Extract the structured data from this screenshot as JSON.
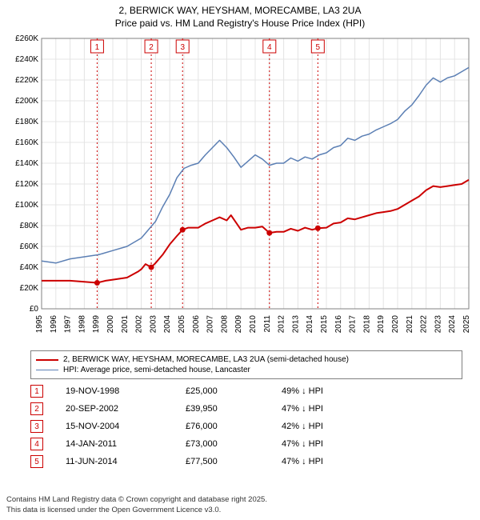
{
  "title_line1": "2, BERWICK WAY, HEYSHAM, MORECAMBE, LA3 2UA",
  "title_line2": "Price paid vs. HM Land Registry's House Price Index (HPI)",
  "chart": {
    "type": "line",
    "background_color": "#ffffff",
    "grid_color": "#e4e4e4",
    "axis_color": "#808080",
    "font_size_axis": 10,
    "y": {
      "min": 0,
      "max": 260000,
      "step": 20000,
      "labels": [
        "£0",
        "£20K",
        "£40K",
        "£60K",
        "£80K",
        "£100K",
        "£120K",
        "£140K",
        "£160K",
        "£180K",
        "£200K",
        "£220K",
        "£240K",
        "£260K"
      ]
    },
    "x": {
      "min": 1995,
      "max": 2025,
      "step": 1,
      "labels": [
        "1995",
        "1996",
        "1997",
        "1998",
        "1999",
        "2000",
        "2001",
        "2002",
        "2003",
        "2004",
        "2005",
        "2006",
        "2007",
        "2008",
        "2009",
        "2010",
        "2011",
        "2012",
        "2013",
        "2014",
        "2015",
        "2016",
        "2017",
        "2018",
        "2019",
        "2020",
        "2021",
        "2022",
        "2023",
        "2024",
        "2025"
      ]
    },
    "series": [
      {
        "name": "price_paid",
        "color": "#cc0000",
        "line_width": 2,
        "points": [
          [
            1995,
            27000
          ],
          [
            1996,
            27000
          ],
          [
            1997,
            27000
          ],
          [
            1998,
            26000
          ],
          [
            1998.9,
            25000
          ],
          [
            1999.5,
            27000
          ],
          [
            2000,
            28000
          ],
          [
            2001,
            30000
          ],
          [
            2001.8,
            36000
          ],
          [
            2002,
            38000
          ],
          [
            2002.3,
            43000
          ],
          [
            2002.7,
            39950
          ],
          [
            2003,
            44000
          ],
          [
            2003.5,
            52000
          ],
          [
            2004,
            62000
          ],
          [
            2004.5,
            70000
          ],
          [
            2004.9,
            76000
          ],
          [
            2005.3,
            78000
          ],
          [
            2006,
            78000
          ],
          [
            2006.5,
            82000
          ],
          [
            2007,
            85000
          ],
          [
            2007.5,
            88000
          ],
          [
            2008,
            85000
          ],
          [
            2008.3,
            90000
          ],
          [
            2008.7,
            82000
          ],
          [
            2009,
            76000
          ],
          [
            2009.5,
            78000
          ],
          [
            2010,
            78000
          ],
          [
            2010.5,
            79000
          ],
          [
            2011,
            73000
          ],
          [
            2011.5,
            74000
          ],
          [
            2012,
            74000
          ],
          [
            2012.5,
            77000
          ],
          [
            2013,
            75000
          ],
          [
            2013.5,
            78000
          ],
          [
            2014,
            76000
          ],
          [
            2014.4,
            77500
          ],
          [
            2015,
            78000
          ],
          [
            2015.5,
            82000
          ],
          [
            2016,
            83000
          ],
          [
            2016.5,
            87000
          ],
          [
            2017,
            86000
          ],
          [
            2017.5,
            88000
          ],
          [
            2018,
            90000
          ],
          [
            2018.5,
            92000
          ],
          [
            2019,
            93000
          ],
          [
            2019.5,
            94000
          ],
          [
            2020,
            96000
          ],
          [
            2020.5,
            100000
          ],
          [
            2021,
            104000
          ],
          [
            2021.5,
            108000
          ],
          [
            2022,
            114000
          ],
          [
            2022.5,
            118000
          ],
          [
            2023,
            117000
          ],
          [
            2023.5,
            118000
          ],
          [
            2024,
            119000
          ],
          [
            2024.5,
            120000
          ],
          [
            2025,
            124000
          ]
        ]
      },
      {
        "name": "hpi",
        "color": "#5b7fb4",
        "line_width": 1.5,
        "points": [
          [
            1995,
            46000
          ],
          [
            1996,
            44000
          ],
          [
            1997,
            48000
          ],
          [
            1998,
            50000
          ],
          [
            1999,
            52000
          ],
          [
            2000,
            56000
          ],
          [
            2001,
            60000
          ],
          [
            2002,
            68000
          ],
          [
            2002.5,
            76000
          ],
          [
            2003,
            84000
          ],
          [
            2003.5,
            98000
          ],
          [
            2004,
            110000
          ],
          [
            2004.5,
            126000
          ],
          [
            2005,
            135000
          ],
          [
            2005.5,
            138000
          ],
          [
            2006,
            140000
          ],
          [
            2006.5,
            148000
          ],
          [
            2007,
            155000
          ],
          [
            2007.5,
            162000
          ],
          [
            2008,
            155000
          ],
          [
            2008.5,
            146000
          ],
          [
            2009,
            136000
          ],
          [
            2009.5,
            142000
          ],
          [
            2010,
            148000
          ],
          [
            2010.5,
            144000
          ],
          [
            2011,
            138000
          ],
          [
            2011.5,
            140000
          ],
          [
            2012,
            140000
          ],
          [
            2012.5,
            145000
          ],
          [
            2013,
            142000
          ],
          [
            2013.5,
            146000
          ],
          [
            2014,
            144000
          ],
          [
            2014.5,
            148000
          ],
          [
            2015,
            150000
          ],
          [
            2015.5,
            155000
          ],
          [
            2016,
            157000
          ],
          [
            2016.5,
            164000
          ],
          [
            2017,
            162000
          ],
          [
            2017.5,
            166000
          ],
          [
            2018,
            168000
          ],
          [
            2018.5,
            172000
          ],
          [
            2019,
            175000
          ],
          [
            2019.5,
            178000
          ],
          [
            2020,
            182000
          ],
          [
            2020.5,
            190000
          ],
          [
            2021,
            196000
          ],
          [
            2021.5,
            205000
          ],
          [
            2022,
            215000
          ],
          [
            2022.5,
            222000
          ],
          [
            2023,
            218000
          ],
          [
            2023.5,
            222000
          ],
          [
            2024,
            224000
          ],
          [
            2024.5,
            228000
          ],
          [
            2025,
            232000
          ]
        ]
      }
    ],
    "sale_markers": {
      "color": "#cc0000",
      "fill": "#ffffff",
      "years": [
        1998.9,
        2002.7,
        2004.9,
        2011.0,
        2014.4
      ],
      "labels": [
        "1",
        "2",
        "3",
        "4",
        "5"
      ]
    }
  },
  "legend": [
    {
      "color": "#cc0000",
      "width": 2,
      "text": "2, BERWICK WAY, HEYSHAM, MORECAMBE, LA3 2UA (semi-detached house)"
    },
    {
      "color": "#5b7fb4",
      "width": 1.5,
      "text": "HPI: Average price, semi-detached house, Lancaster"
    }
  ],
  "markers_table": [
    {
      "n": "1",
      "date": "19-NOV-1998",
      "price": "£25,000",
      "diff": "49% ↓ HPI"
    },
    {
      "n": "2",
      "date": "20-SEP-2002",
      "price": "£39,950",
      "diff": "47% ↓ HPI"
    },
    {
      "n": "3",
      "date": "15-NOV-2004",
      "price": "£76,000",
      "diff": "42% ↓ HPI"
    },
    {
      "n": "4",
      "date": "14-JAN-2011",
      "price": "£73,000",
      "diff": "47% ↓ HPI"
    },
    {
      "n": "5",
      "date": "11-JUN-2014",
      "price": "£77,500",
      "diff": "47% ↓ HPI"
    }
  ],
  "footer_line1": "Contains HM Land Registry data © Crown copyright and database right 2025.",
  "footer_line2": "This data is licensed under the Open Government Licence v3.0."
}
